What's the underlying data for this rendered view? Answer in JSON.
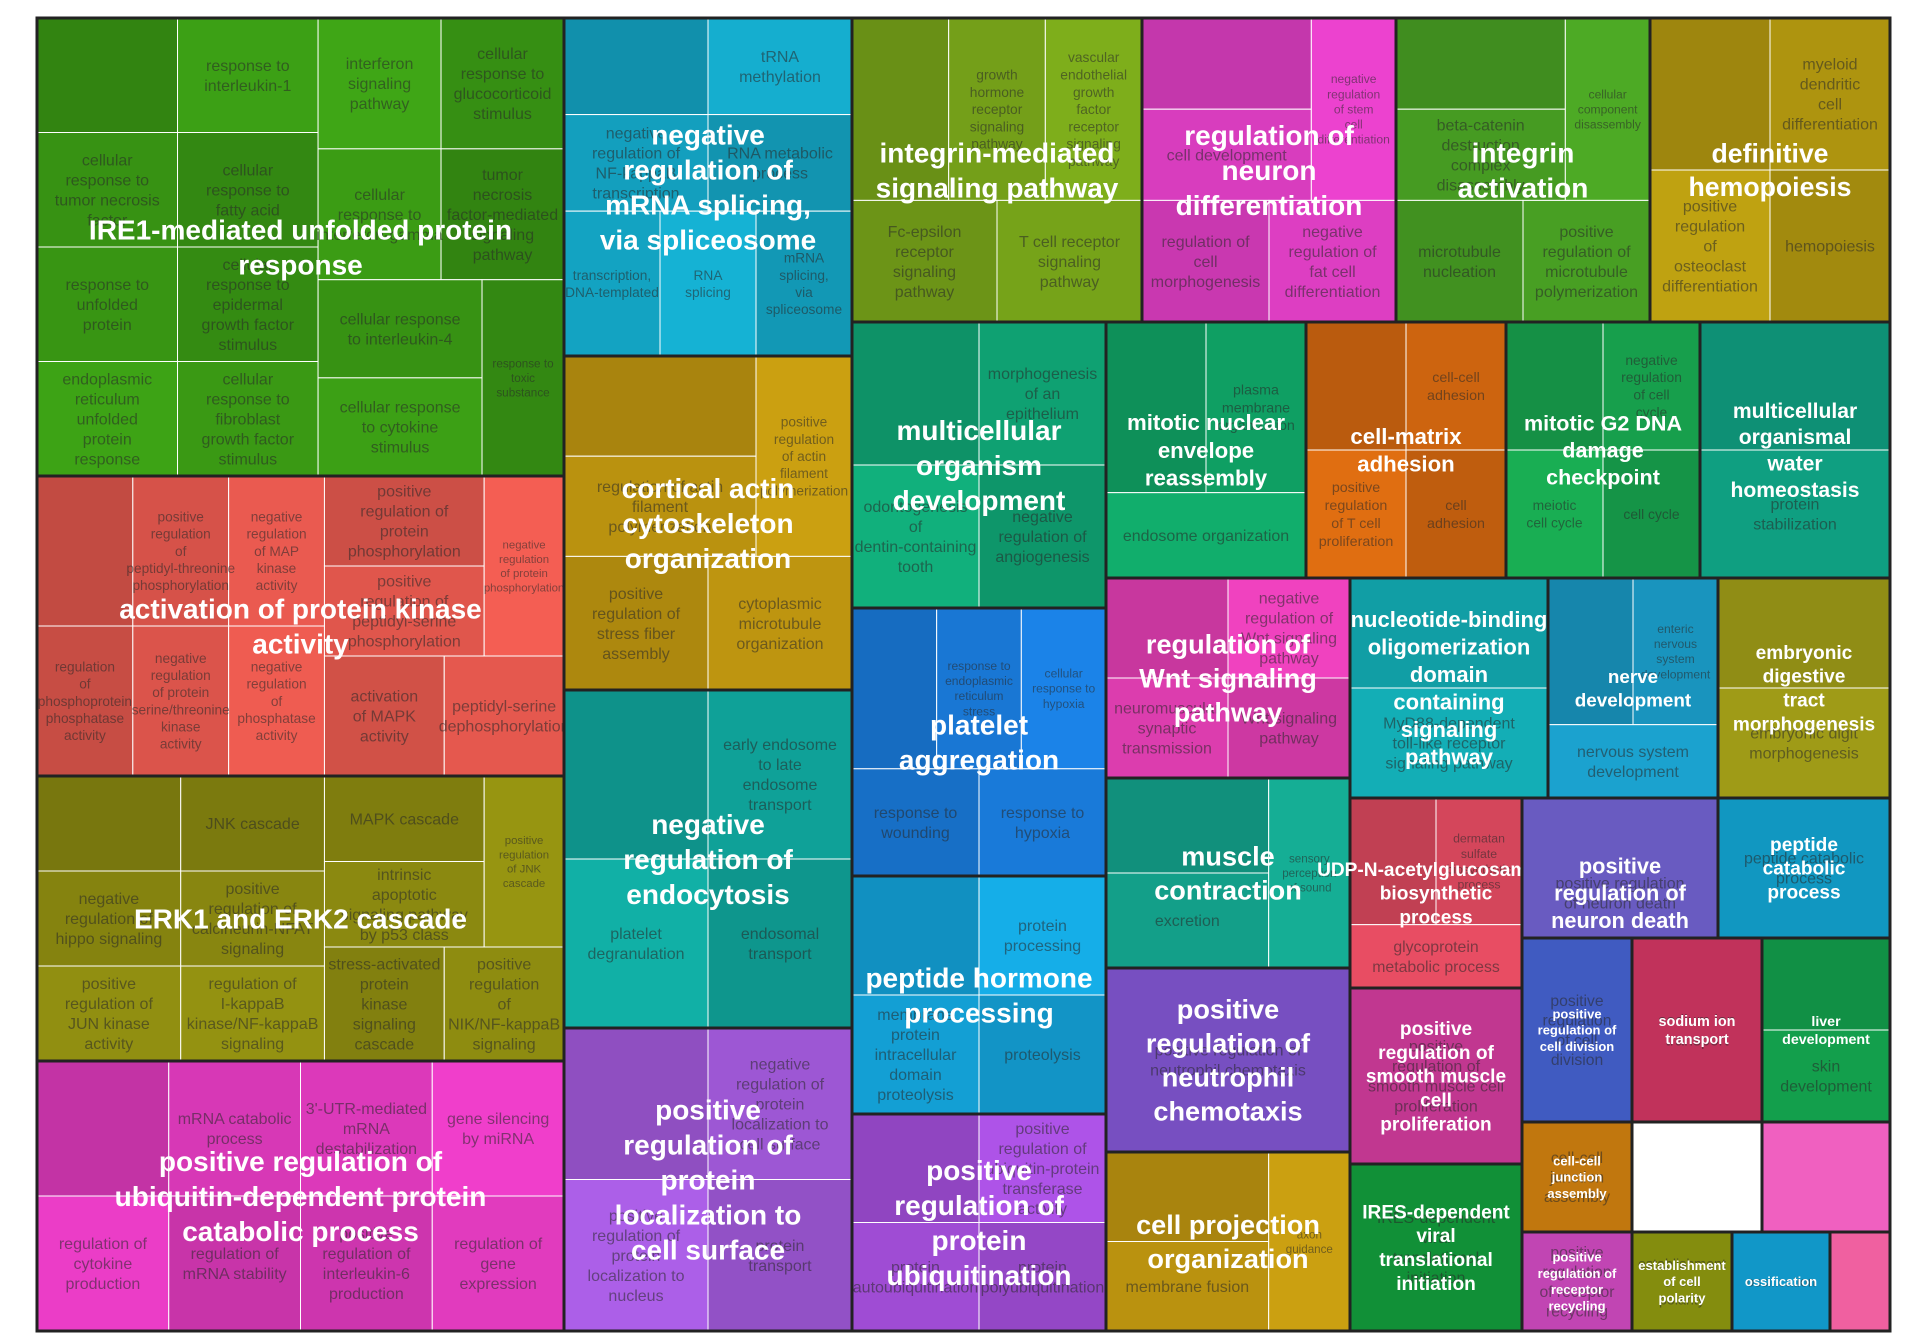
{
  "chart_data": {
    "type": "treemap",
    "title": "",
    "groups": [
      {
        "name": "IRE1-mediated unfolded protein response",
        "color": "#3A9A14",
        "terms": [
          "IRE1-mediated unfolded protein response",
          "cellular response to tumor necrosis factor",
          "response to interleukin-1",
          "cellular response to fatty acid",
          "response to unfolded protein",
          "endoplasmic reticulum unfolded protein response",
          "cellular response to epidermal growth factor stimulus",
          "cellular response to fibroblast growth factor stimulus",
          "interferon signaling pathway",
          "cellular response to glucocorticoid stimulus",
          "cellular response to interferon-gamma",
          "tumor necrosis factor-mediated signaling pathway",
          "cellular response to interleukin-4",
          "cellular response to cytokine stimulus",
          "response to toxic substance"
        ]
      },
      {
        "name": "activation of protein kinase activity",
        "color": "#E2574D",
        "terms": [
          "activation of protein kinase activity",
          "positive regulation of peptidyl-threonine phosphorylation",
          "negative regulation of MAP kinase activity",
          "regulation of phosphoprotein phosphatase activity",
          "negative regulation of protein serine/threonine kinase activity",
          "negative regulation of phosphatase activity",
          "positive regulation of protein phosphorylation",
          "positive regulation of peptidyl-serine phosphorylation",
          "negative regulation of protein phosphorylation",
          "activation of MAPK activity",
          "peptidyl-serine dephosphorylation"
        ]
      },
      {
        "name": "ERK1 and ERK2 cascade",
        "color": "#8C8A10",
        "terms": [
          "ERK1 and ERK2 cascade",
          "negative regulation of hippo signaling",
          "positive regulation of JUN kinase activity",
          "JNK cascade",
          "positive regulation of calcineurin-NFAT signaling cascade",
          "regulation of I-kappaB kinase/NF-kappaB signaling",
          "MAPK cascade",
          "intrinsic apoptotic signaling pathway by p53 class mediator",
          "positive regulation of JNK cascade",
          "stress-activated protein kinase signaling cascade",
          "positive regulation of NIK/NF-kappaB signaling"
        ]
      },
      {
        "name": "positive regulation of ubiquitin-dependent protein catabolic process",
        "color": "#E33BC0",
        "terms": [
          "positive regulation of ubiquitin-dependent protein catabolic process",
          "mRNA catabolic process",
          "regulation of cytokine production",
          "regulation of mRNA stability",
          "3'-UTR-mediated mRNA destabilization",
          "gene silencing by miRNA",
          "positive regulation of interleukin-6 production",
          "regulation of gene expression"
        ]
      },
      {
        "name": "negative regulation of mRNA splicing, via spliceosome",
        "color": "#14A8C8",
        "terms": [
          "negative regulation of mRNA splicing, via spliceosome",
          "negative regulation of NF-kappaB transcription factor activity",
          "tRNA methylation",
          "RNA metabolic process",
          "transcription, DNA-templated",
          "RNA splicing",
          "mRNA splicing, via spliceosome"
        ]
      },
      {
        "name": "cortical actin cytoskeleton organization",
        "color": "#C49A10",
        "terms": [
          "cortical actin cytoskeleton organization",
          "regulation of actin filament polymerization",
          "positive regulation of actin filament polymerization",
          "positive regulation of stress fiber assembly",
          "cytoplasmic microtubule organization"
        ]
      },
      {
        "name": "negative regulation of endocytosis",
        "color": "#10AAA0",
        "terms": [
          "negative regulation of endocytosis",
          "early endosome to late endosome transport",
          "platelet degranulation",
          "endosomal transport"
        ]
      },
      {
        "name": "positive regulation of protein localization to cell surface",
        "color": "#A65CE0",
        "terms": [
          "positive regulation of protein localization to cell surface",
          "negative regulation of protein localization to cell surface",
          "positive regulation of protein localization to nucleus",
          "protein transport"
        ]
      },
      {
        "name": "integrin-mediated signaling pathway",
        "color": "#7AA81A",
        "terms": [
          "integrin-mediated signaling pathway",
          "growth hormone receptor signaling pathway",
          "vascular endothelial growth factor receptor signaling pathway",
          "Fc-epsilon receptor signaling pathway",
          "T cell receptor signaling pathway"
        ]
      },
      {
        "name": "regulation of neuron differentiation",
        "color": "#E440C8",
        "terms": [
          "regulation of neuron differentiation",
          "cell development",
          "negative regulation of stem cell differentiation",
          "regulation of cell morphogenesis",
          "negative regulation of fat cell differentiation"
        ]
      },
      {
        "name": "integrin activation",
        "color": "#4AA424",
        "terms": [
          "integrin activation",
          "beta-catenin destruction complex disassembly",
          "cellular component disassembly",
          "microtubule nucleation",
          "positive regulation of microtubule polymerization"
        ]
      },
      {
        "name": "definitive hemopoiesis",
        "color": "#B89C10",
        "terms": [
          "definitive hemopoiesis",
          "myeloid dendritic cell differentiation",
          "positive regulation of osteoclast differentiation",
          "hemopoiesis"
        ]
      },
      {
        "name": "multicellular organism development",
        "color": "#10AA78",
        "terms": [
          "multicellular organism development",
          "morphogenesis of an epithelium",
          "odontogenesis of dentin-containing tooth",
          "negative regulation of angiogenesis"
        ]
      },
      {
        "name": "mitotic nuclear envelope reassembly",
        "color": "#10A868",
        "terms": [
          "mitotic nuclear envelope reassembly",
          "plasma membrane organization",
          "endosome organization"
        ]
      },
      {
        "name": "cell-matrix adhesion",
        "color": "#D86A10",
        "terms": [
          "cell-matrix adhesion",
          "cell-cell adhesion",
          "positive regulation of T cell proliferation",
          "cell adhesion"
        ]
      },
      {
        "name": "mitotic G2 DNA damage checkpoint",
        "color": "#18A850",
        "terms": [
          "mitotic G2 DNA damage checkpoint",
          "negative regulation of cell cycle",
          "meiotic cell cycle",
          "cell cycle"
        ]
      },
      {
        "name": "multicellular organismal water homeostasis",
        "color": "#10A888",
        "terms": [
          "multicellular organismal water homeostasis",
          "protein stabilization"
        ]
      },
      {
        "name": "platelet aggregation",
        "color": "#1A7EE0",
        "terms": [
          "platelet aggregation",
          "response to endoplasmic reticulum stress",
          "cellular response to hypoxia",
          "response to wounding",
          "response to hypoxia"
        ]
      },
      {
        "name": "regulation of Wnt signaling pathway",
        "color": "#E840B8",
        "terms": [
          "regulation of Wnt signaling pathway",
          "neuromuscular synaptic transmission",
          "negative regulation of Wnt signaling pathway",
          "Wnt signaling pathway"
        ]
      },
      {
        "name": "nucleotide-binding oligomerization domain containing signaling pathway",
        "color": "#14B8C0",
        "terms": [
          "nucleotide-binding oligomerization domain containing signaling pathway",
          "MyD88-dependent toll-like receptor signaling pathway"
        ]
      },
      {
        "name": "nerve development",
        "color": "#1A9CC8",
        "terms": [
          "nerve development",
          "enteric nervous system development",
          "nervous system development"
        ]
      },
      {
        "name": "embryonic digestive tract morphogenesis",
        "color": "#A8A418",
        "terms": [
          "embryonic digestive tract morphogenesis",
          "embryonic digit morphogenesis"
        ]
      },
      {
        "name": "peptide hormone processing",
        "color": "#14A8E0",
        "terms": [
          "peptide hormone processing",
          "membrane protein intracellular domain proteolysis",
          "protein processing",
          "proteolysis"
        ]
      },
      {
        "name": "muscle contraction",
        "color": "#14A890",
        "terms": [
          "muscle contraction",
          "excretion",
          "sensory perception of sound"
        ]
      },
      {
        "name": "positive regulation of neutrophil chemotaxis",
        "color": "#8A5CE0",
        "terms": [
          "positive regulation of neutrophil chemotaxis"
        ]
      },
      {
        "name": "cell projection organization",
        "color": "#C49A10",
        "terms": [
          "cell projection organization",
          "membrane fusion",
          "axon guidance"
        ]
      },
      {
        "name": "positive regulation of protein ubiquitination",
        "color": "#A850E0",
        "terms": [
          "positive regulation of protein ubiquitination",
          "protein autoubiquitination",
          "positive regulation of ubiquitin-protein transferase activity",
          "protein polyubiquitination"
        ]
      },
      {
        "name": "UDP-N-acetylglucosamine biosynthetic process",
        "color": "#E04A60",
        "terms": [
          "UDP-N-acetylglucosamine biosynthetic process",
          "dermatan sulfate biosynthetic process",
          "glycoprotein metabolic process"
        ]
      },
      {
        "name": "positive regulation of neuron death",
        "color": "#7A6AE0",
        "terms": [
          "positive regulation of neuron death"
        ]
      },
      {
        "name": "peptide catabolic process",
        "color": "#14B0E0",
        "terms": [
          "peptide catabolic process"
        ]
      },
      {
        "name": "positive regulation of smooth muscle cell proliferation",
        "color": "#E040A8",
        "terms": [
          "positive regulation of smooth muscle cell proliferation"
        ]
      },
      {
        "name": "positive regulation of cell division",
        "color": "#4A6AE0",
        "terms": [
          "positive regulation of cell division"
        ]
      },
      {
        "name": "sodium ion transport",
        "color": "#E03A6A",
        "terms": [
          "sodium ion transport"
        ]
      },
      {
        "name": "liver development",
        "color": "#14A850",
        "terms": [
          "liver development",
          "skin development"
        ]
      },
      {
        "name": "IRES-dependent viral translational initiation",
        "color": "#14A840",
        "terms": [
          "IRES-dependent viral translational initiation"
        ]
      },
      {
        "name": "cell-cell junction assembly",
        "color": "#E08A10",
        "terms": [
          "cell-cell junction assembly"
        ]
      },
      {
        "name": "positive regulation of receptor recycling",
        "color": "#E050D0",
        "terms": [
          "positive regulation of receptor recycling"
        ]
      },
      {
        "name": "establishment of cell polarity",
        "color": "#9AA410",
        "terms": [
          "establishment of cell polarity"
        ]
      },
      {
        "name": "ossification",
        "color": "#14B0E8",
        "terms": [
          "ossification"
        ]
      },
      {
        "name": "",
        "color": "#F060C0",
        "terms": []
      },
      {
        "name": "",
        "color": "#F060A0",
        "terms": []
      },
      {
        "name": "",
        "color": "#F0604A",
        "terms": []
      }
    ]
  }
}
